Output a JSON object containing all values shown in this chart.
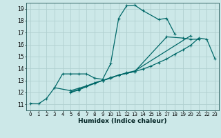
{
  "title": "",
  "xlabel": "Humidex (Indice chaleur)",
  "xlim": [
    -0.5,
    23.5
  ],
  "ylim": [
    10.5,
    19.5
  ],
  "xticks": [
    0,
    1,
    2,
    3,
    4,
    5,
    6,
    7,
    8,
    9,
    10,
    11,
    12,
    13,
    14,
    15,
    16,
    17,
    18,
    19,
    20,
    21,
    22,
    23
  ],
  "yticks": [
    11,
    12,
    13,
    14,
    15,
    16,
    17,
    18,
    19
  ],
  "background_color": "#cce8e8",
  "grid_color": "#b0d0d0",
  "line_color": "#006868",
  "line1_x": [
    0,
    1,
    2,
    3,
    4,
    5,
    6,
    7,
    8,
    9,
    10,
    11,
    12,
    13,
    14,
    16,
    17,
    18
  ],
  "line1_y": [
    11.1,
    11.05,
    11.5,
    12.4,
    13.55,
    13.55,
    13.55,
    13.55,
    13.2,
    13.1,
    14.4,
    18.2,
    19.25,
    19.3,
    18.85,
    18.1,
    18.2,
    16.9
  ],
  "line2_x": [
    3,
    5,
    6,
    7,
    8,
    9,
    10,
    11,
    12,
    13,
    14,
    15,
    16,
    17,
    18,
    19,
    20,
    21,
    22,
    23
  ],
  "line2_y": [
    12.4,
    12.15,
    12.35,
    12.55,
    12.8,
    13.0,
    13.25,
    13.45,
    13.6,
    13.75,
    13.95,
    14.2,
    14.5,
    14.8,
    15.2,
    15.55,
    15.95,
    16.55,
    16.45,
    14.85
  ],
  "line3_x": [
    5,
    6,
    7,
    8,
    9,
    10,
    11,
    12,
    13,
    17,
    19,
    20,
    21
  ],
  "line3_y": [
    12.05,
    12.25,
    12.5,
    12.8,
    13.0,
    13.2,
    13.45,
    13.6,
    13.75,
    16.65,
    16.55,
    16.45,
    16.45
  ],
  "line4_x": [
    5,
    6,
    7,
    8,
    9,
    10,
    11,
    12,
    13,
    20
  ],
  "line4_y": [
    12.0,
    12.2,
    12.5,
    12.75,
    13.0,
    13.2,
    13.45,
    13.65,
    13.8,
    16.75
  ]
}
